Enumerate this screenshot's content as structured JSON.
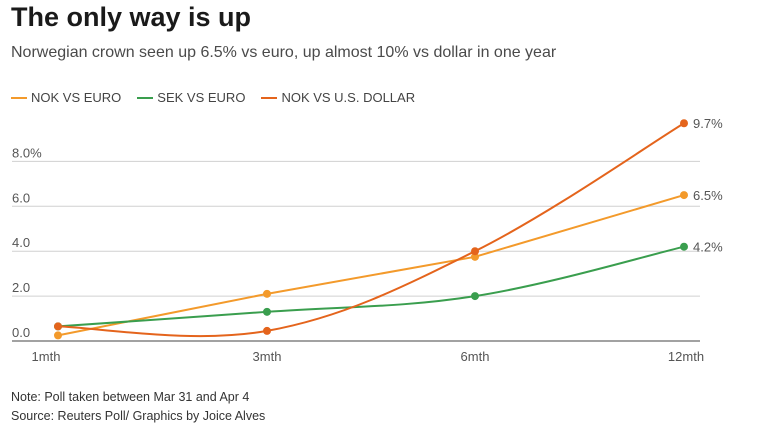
{
  "chart_data": {
    "type": "line",
    "title": "The only way is up",
    "subtitle": "Norwegian crown seen up 6.5% vs euro, up almost 10% vs dollar in one year",
    "categories": [
      "1mth",
      "3mth",
      "6mth",
      "12mth"
    ],
    "x": [
      1,
      3,
      6,
      12
    ],
    "series": [
      {
        "name": "NOK VS EURO",
        "color": "#f39a2b",
        "values": [
          0.25,
          2.1,
          3.75,
          6.5
        ],
        "end_label": "6.5%"
      },
      {
        "name": "SEK VS EURO",
        "color": "#3a9e4e",
        "values": [
          0.65,
          1.3,
          2.0,
          4.2
        ],
        "end_label": "4.2%"
      },
      {
        "name": "NOK VS U.S. DOLLAR",
        "color": "#e4641c",
        "values": [
          0.65,
          0.45,
          4.0,
          9.7
        ],
        "end_label": "9.7%"
      }
    ],
    "yticks": [
      {
        "value": 0,
        "label": "0.0"
      },
      {
        "value": 2,
        "label": "2.0"
      },
      {
        "value": 4,
        "label": "4.0"
      },
      {
        "value": 6,
        "label": "6.0"
      },
      {
        "value": 8,
        "label": "8.0%"
      }
    ],
    "ylim": [
      0,
      10
    ],
    "grid": true,
    "legend_position": "top-left"
  },
  "footer": {
    "note": "Note: Poll taken between Mar 31 and Apr 4",
    "source": "Source: Reuters Poll/ Graphics by Joice Alves"
  }
}
